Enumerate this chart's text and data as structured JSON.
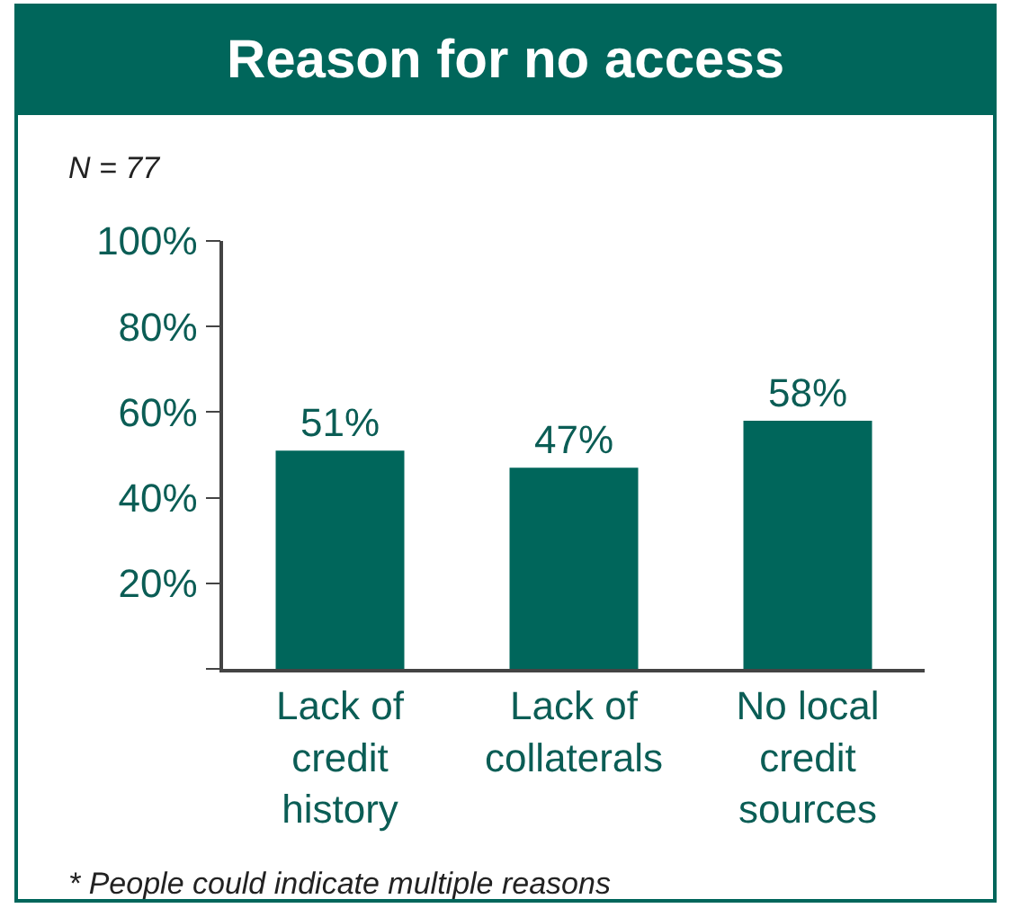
{
  "chart_data": {
    "type": "bar",
    "title": "Reason for no access",
    "categories": [
      "Lack of credit history",
      "Lack of collaterals",
      "No local credit sources"
    ],
    "values": [
      51,
      47,
      58
    ],
    "color": "#00665b",
    "value_labels": [
      "51%",
      "47%",
      "58%"
    ],
    "ylim": [
      0,
      100
    ],
    "yticks": [
      {
        "value": 0,
        "label": null
      },
      {
        "value": 20,
        "label": "20%"
      },
      {
        "value": 40,
        "label": "40%"
      },
      {
        "value": 60,
        "label": "60%"
      },
      {
        "value": 80,
        "label": "80%"
      },
      {
        "value": 100,
        "label": "100%"
      }
    ],
    "grid": false,
    "legend": false,
    "annotations": [
      "N = 77",
      "* People could indicate multiple reasons"
    ]
  }
}
